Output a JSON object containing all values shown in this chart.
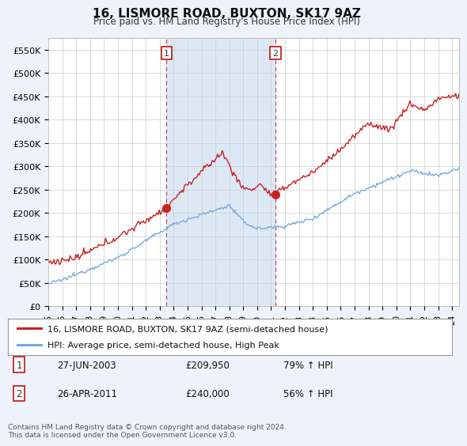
{
  "title": "16, LISMORE ROAD, BUXTON, SK17 9AZ",
  "subtitle": "Price paid vs. HM Land Registry's House Price Index (HPI)",
  "ylim": [
    0,
    575000
  ],
  "yticks": [
    0,
    50000,
    100000,
    150000,
    200000,
    250000,
    300000,
    350000,
    400000,
    450000,
    500000,
    550000
  ],
  "ytick_labels": [
    "£0",
    "£50K",
    "£100K",
    "£150K",
    "£200K",
    "£250K",
    "£300K",
    "£350K",
    "£400K",
    "£450K",
    "£500K",
    "£550K"
  ],
  "xlim_start": 1995.0,
  "xlim_end": 2024.5,
  "red_line_label": "16, LISMORE ROAD, BUXTON, SK17 9AZ (semi-detached house)",
  "blue_line_label": "HPI: Average price, semi-detached house, High Peak",
  "transaction1_date": "27-JUN-2003",
  "transaction1_price": "£209,950",
  "transaction1_hpi": "79% ↑ HPI",
  "transaction1_x": 2003.49,
  "transaction1_marker_y": 209950,
  "transaction2_date": "26-APR-2011",
  "transaction2_price": "£240,000",
  "transaction2_hpi": "56% ↑ HPI",
  "transaction2_x": 2011.32,
  "transaction2_marker_y": 240000,
  "footer1": "Contains HM Land Registry data © Crown copyright and database right 2024.",
  "footer2": "This data is licensed under the Open Government Licence v3.0.",
  "bg_color": "#eef2fa",
  "plot_bg_color": "#ffffff",
  "shaded_bg_color": "#dce8f5",
  "red_color": "#cc2222",
  "blue_color": "#7aaadd",
  "grid_color": "#cccccc"
}
